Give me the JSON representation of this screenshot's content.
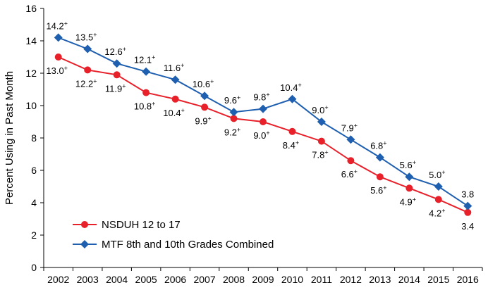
{
  "chart_data": {
    "type": "line",
    "title": "",
    "xlabel": "",
    "ylabel": "Percent Using in Past Month",
    "ylim": [
      0,
      16
    ],
    "yticks": [
      "0",
      "2",
      "4",
      "6",
      "8",
      "10",
      "12",
      "14",
      "16"
    ],
    "x": [
      "2002",
      "2003",
      "2004",
      "2005",
      "2006",
      "2007",
      "2008",
      "2009",
      "2010",
      "2011",
      "2012",
      "2013",
      "2014",
      "2015",
      "2016"
    ],
    "legend_position": "bottom-left",
    "series": [
      {
        "name": "NSDUH 12 to 17",
        "color": "#e8202a",
        "marker": "circle",
        "values": [
          13.0,
          12.2,
          11.9,
          10.8,
          10.4,
          9.9,
          9.2,
          9.0,
          8.4,
          7.8,
          6.6,
          5.6,
          4.9,
          4.2,
          3.4
        ],
        "labels": [
          "13.0+",
          "12.2+",
          "11.9+",
          "10.8+",
          "10.4+",
          "9.9+",
          "9.2+",
          "9.0+",
          "8.4+",
          "7.8+",
          "6.6+",
          "5.6+",
          "4.9+",
          "4.2+",
          "3.4"
        ],
        "label_side": [
          "below",
          "below",
          "below",
          "below",
          "below",
          "below",
          "below",
          "below",
          "below",
          "below",
          "below",
          "below",
          "below",
          "below",
          "below"
        ]
      },
      {
        "name": "MTF 8th and 10th Grades Combined",
        "color": "#1f5fb0",
        "marker": "diamond",
        "values": [
          14.2,
          13.5,
          12.6,
          12.1,
          11.6,
          10.6,
          9.6,
          9.8,
          10.4,
          9.0,
          7.9,
          6.8,
          5.6,
          5.0,
          3.8
        ],
        "labels": [
          "14.2+",
          "13.5+",
          "12.6+",
          "12.1+",
          "11.6+",
          "10.6+",
          "9.6+",
          "9.8+",
          "10.4+",
          "9.0+",
          "7.9+",
          "6.8+",
          "5.6+",
          "5.0+",
          "3.8"
        ],
        "label_side": [
          "above",
          "above",
          "above",
          "above",
          "above",
          "above",
          "above",
          "above",
          "above",
          "above",
          "above",
          "above",
          "above",
          "above",
          "above"
        ]
      }
    ]
  }
}
